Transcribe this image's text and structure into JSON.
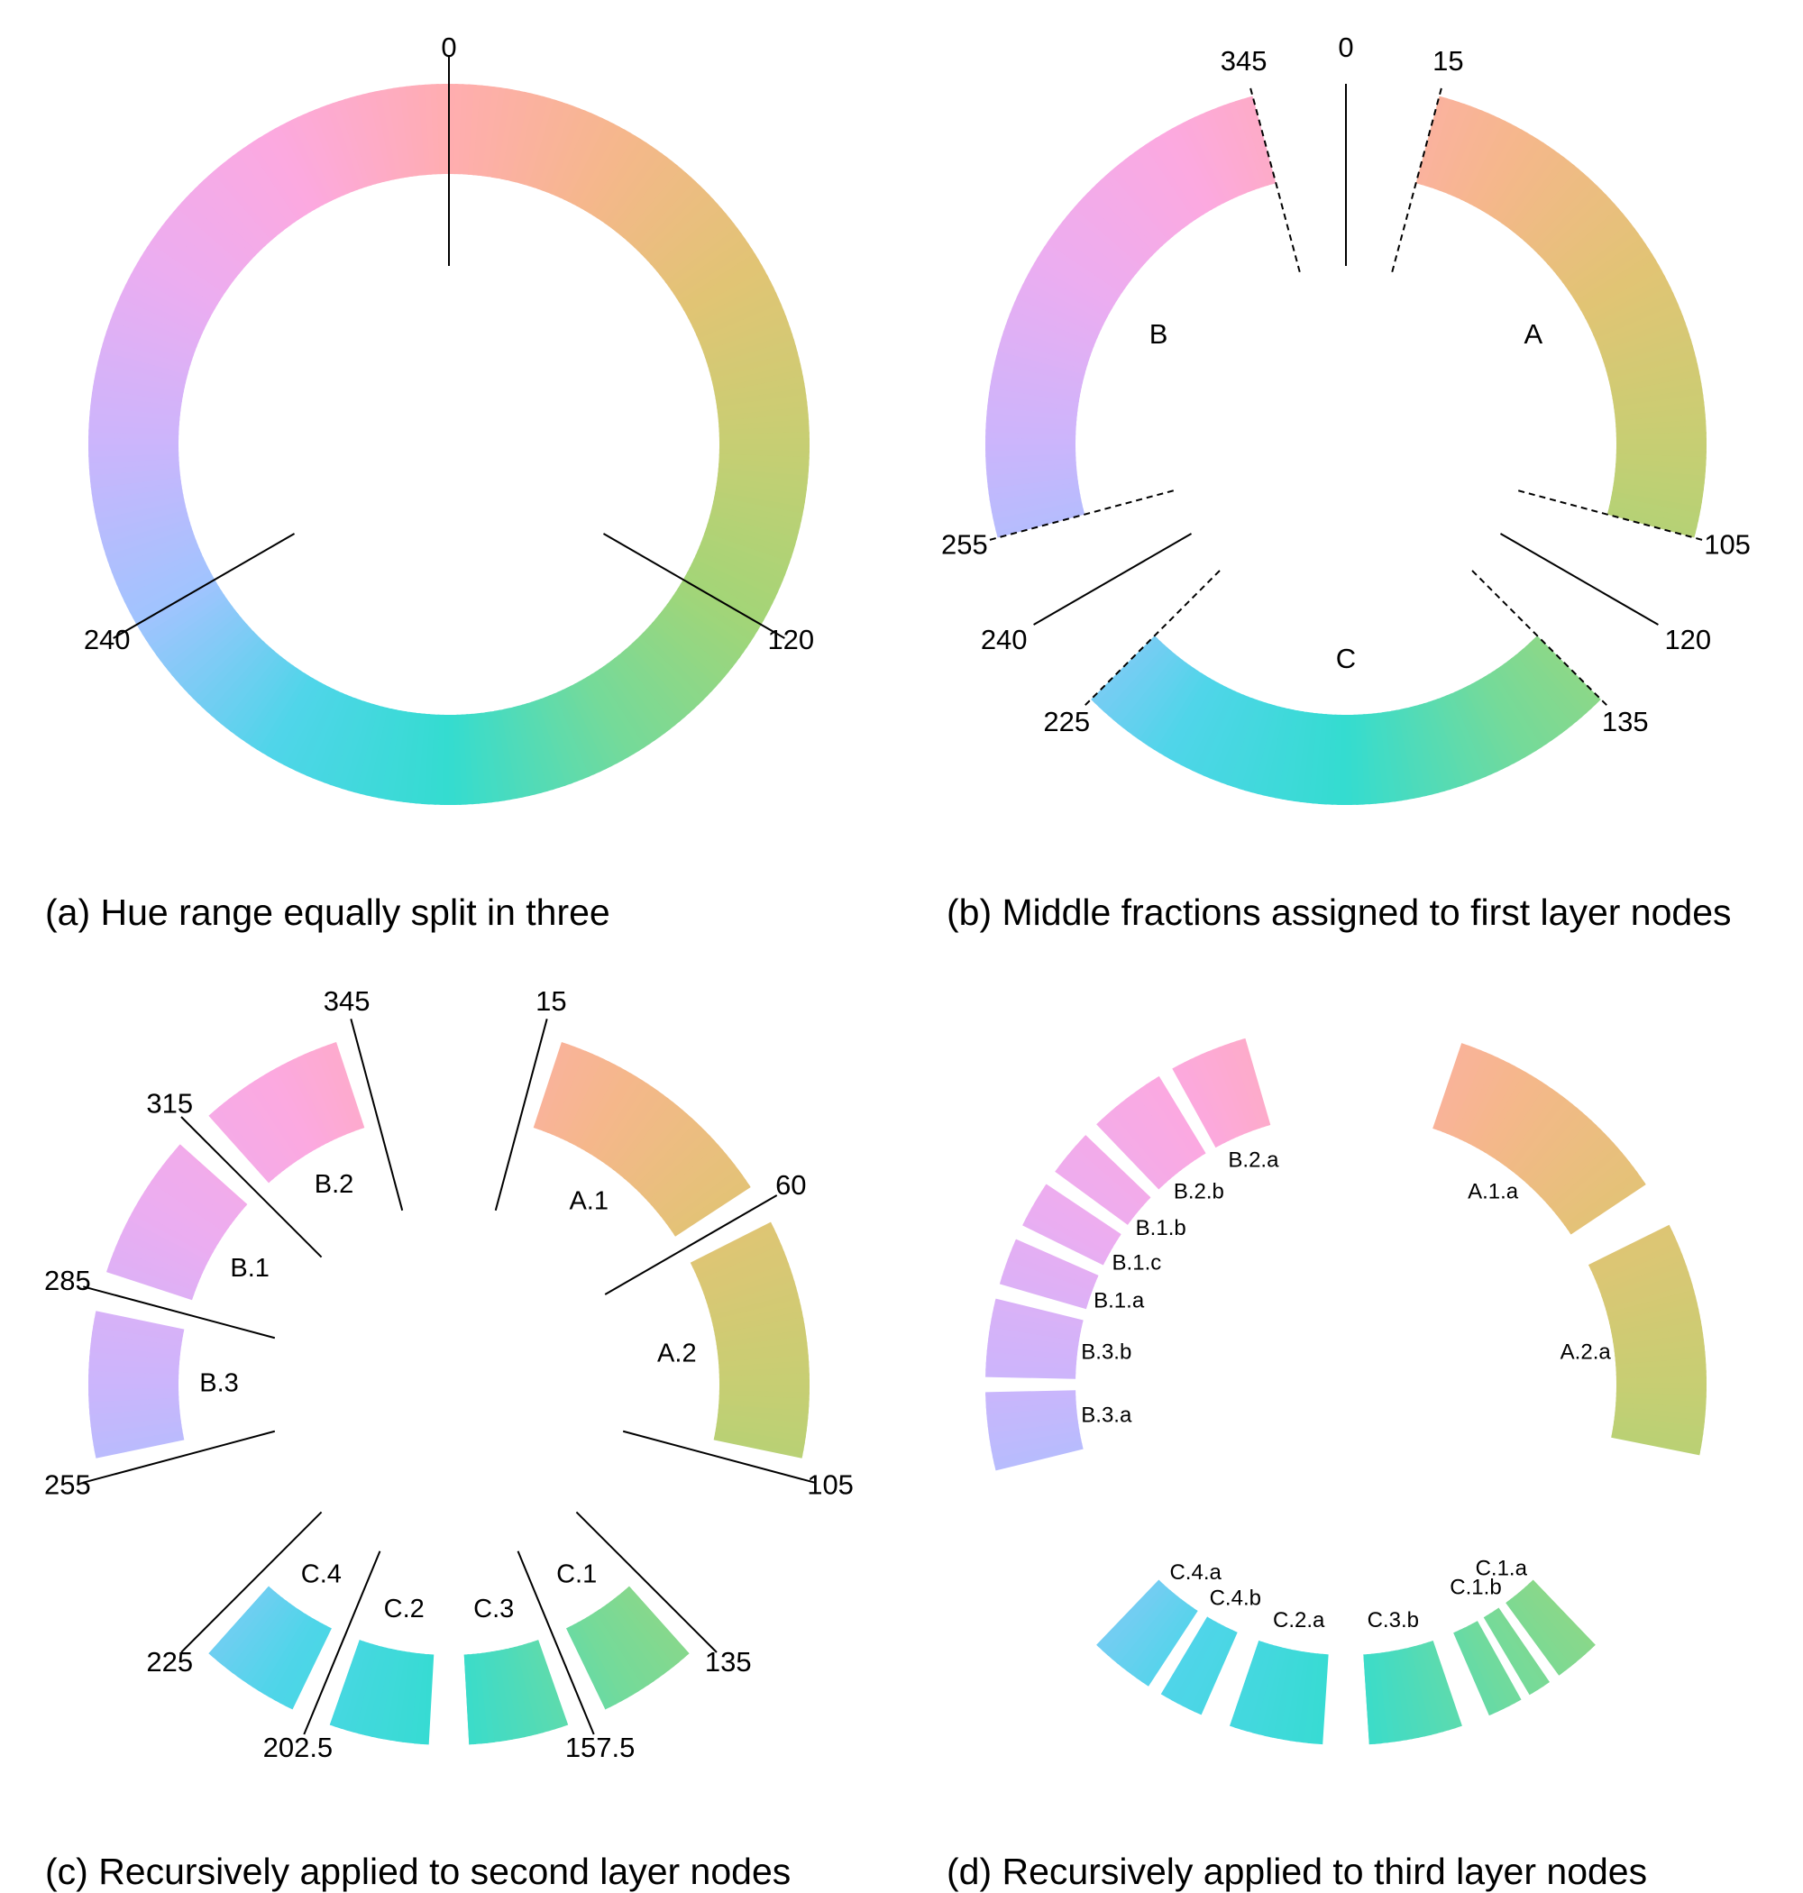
{
  "panels": [
    {
      "id": "a",
      "caption": "(a) Hue range equally split in three",
      "solid_lines": [
        0,
        120,
        240
      ],
      "dashed_lines": [],
      "ring_segments": [
        {
          "from": 0,
          "to": 360,
          "label": ""
        }
      ],
      "boundary_labels": [
        "0",
        "120",
        "240"
      ]
    },
    {
      "id": "b",
      "caption": "(b) Middle fractions assigned to first layer nodes",
      "solid_lines": [
        0,
        120,
        240
      ],
      "dashed_lines": [
        15,
        105,
        135,
        225,
        255,
        345
      ],
      "ring_segments": [
        {
          "from": 15,
          "to": 105,
          "label": "A"
        },
        {
          "from": 135,
          "to": 225,
          "label": "C"
        },
        {
          "from": 255,
          "to": 345,
          "label": "B"
        }
      ],
      "boundary_labels": [
        "0",
        "15",
        "105",
        "120",
        "135",
        "225",
        "240",
        "255",
        "345"
      ]
    },
    {
      "id": "c",
      "caption": "(c) Recursively applied to second layer nodes",
      "solid_lines": [
        15,
        60,
        105,
        135,
        157.5,
        202.5,
        225,
        255,
        285,
        315,
        345
      ],
      "dashed_lines": [],
      "ring_segments": [
        {
          "from": 15,
          "to": 60,
          "label": "A.1"
        },
        {
          "from": 60,
          "to": 105,
          "label": "A.2"
        },
        {
          "from": 135,
          "to": 157.5,
          "label": "C.1"
        },
        {
          "from": 157.5,
          "to": 180,
          "label": "C.3"
        },
        {
          "from": 180,
          "to": 202.5,
          "label": "C.2"
        },
        {
          "from": 202.5,
          "to": 225,
          "label": "C.4"
        },
        {
          "from": 255,
          "to": 285,
          "label": "B.3"
        },
        {
          "from": 285,
          "to": 315,
          "label": "B.1"
        },
        {
          "from": 315,
          "to": 345,
          "label": "B.2"
        }
      ],
      "boundary_labels": [
        "15",
        "60",
        "105",
        "135",
        "157.5",
        "202.5",
        "225",
        "255",
        "285",
        "315",
        "345"
      ]
    },
    {
      "id": "d",
      "caption": "(d) Recursively applied to third layer nodes",
      "solid_lines": [],
      "dashed_lines": [],
      "ring_segments": [
        {
          "from": 15,
          "to": 60,
          "label": "A.1.a"
        },
        {
          "from": 60,
          "to": 105,
          "label": "A.2.a"
        },
        {
          "from": 255,
          "to": 270,
          "label": "B.3.a"
        },
        {
          "from": 270,
          "to": 285,
          "label": "B.3.b"
        },
        {
          "from": 285,
          "to": 295,
          "label": "B.1.a"
        },
        {
          "from": 295,
          "to": 305,
          "label": "B.1.c"
        },
        {
          "from": 305,
          "to": 315,
          "label": "B.1.b"
        },
        {
          "from": 315,
          "to": 330,
          "label": "B.2.b"
        },
        {
          "from": 330,
          "to": 345,
          "label": "B.2.a"
        },
        {
          "from": 135,
          "to": 145,
          "label": "C.1.a"
        },
        {
          "from": 145,
          "to": 150,
          "label": "C.1.b"
        },
        {
          "from": 150,
          "to": 157.5,
          "label": ""
        },
        {
          "from": 157.5,
          "to": 180,
          "label": "C.3.b"
        },
        {
          "from": 180,
          "to": 202.5,
          "label": "C.2.a"
        },
        {
          "from": 202.5,
          "to": 212,
          "label": "C.4.b"
        },
        {
          "from": 212,
          "to": 225,
          "label": "C.4.a"
        }
      ],
      "boundary_labels": []
    }
  ]
}
